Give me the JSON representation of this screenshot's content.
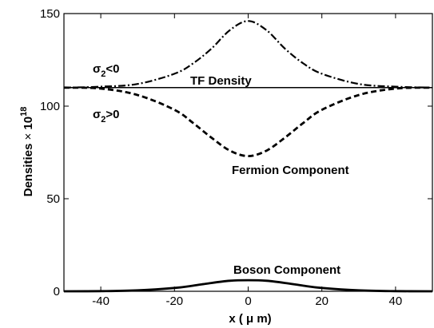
{
  "chart_data": {
    "type": "line",
    "title": "",
    "xlabel": "x ( μ m)",
    "ylabel_main": "Densities",
    "ylabel_times": "×",
    "ylabel_base": "10",
    "ylabel_exp": "18",
    "xlim": [
      -50,
      50
    ],
    "ylim": [
      0,
      150
    ],
    "xticks": [
      -40,
      -20,
      0,
      20,
      40
    ],
    "yticks": [
      0,
      50,
      100,
      150
    ],
    "grid": false,
    "series": [
      {
        "name": "TF Density",
        "style": "solid-thin",
        "color": "#000000",
        "x": [
          -50,
          50
        ],
        "y": [
          110,
          110
        ]
      },
      {
        "name": "σ2<0",
        "style": "dash-dot",
        "color": "#000000",
        "x": [
          -50,
          -40,
          -30,
          -20,
          -15,
          -10,
          -5,
          0,
          5,
          10,
          15,
          20,
          30,
          40,
          50
        ],
        "y": [
          110,
          110.5,
          112,
          117.5,
          123,
          131,
          141,
          146,
          141,
          131,
          123,
          117.5,
          112,
          110.5,
          110
        ]
      },
      {
        "name": "σ2>0",
        "style": "dashed",
        "color": "#000000",
        "x": [
          -50,
          -40,
          -30,
          -20,
          -15,
          -10,
          -5,
          0,
          5,
          10,
          15,
          20,
          30,
          40,
          50
        ],
        "y": [
          110,
          109.5,
          106,
          98,
          91,
          83,
          76,
          73,
          76,
          83,
          91,
          98,
          106,
          109.5,
          110
        ]
      },
      {
        "name": "Boson Component",
        "style": "solid-thick",
        "color": "#000000",
        "x": [
          -50,
          -40,
          -30,
          -20,
          -15,
          -10,
          -5,
          0,
          5,
          10,
          15,
          20,
          30,
          40,
          50
        ],
        "y": [
          0,
          0.1,
          0.5,
          1.8,
          3,
          4.5,
          5.7,
          6,
          5.7,
          4.5,
          3,
          1.8,
          0.5,
          0.1,
          0
        ]
      }
    ],
    "annotations": {
      "tf_density": "TF Density",
      "sigma_neg_sym": "σ",
      "sigma_neg_sub": "2",
      "sigma_neg_rel": "<0",
      "sigma_pos_sym": "σ",
      "sigma_pos_sub": "2",
      "sigma_pos_rel": ">0",
      "fermion": "Fermion Component",
      "boson": "Boson Component"
    }
  }
}
